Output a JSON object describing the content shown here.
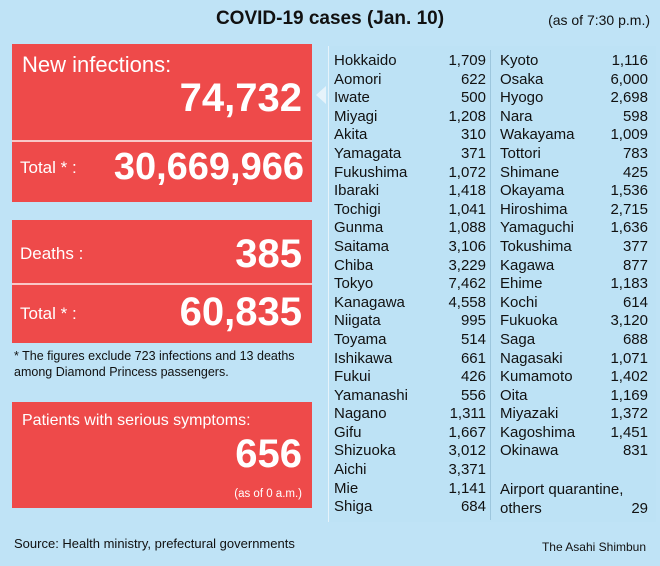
{
  "title": "COVID-19 cases (Jan. 10)",
  "as_of": "(as of 7:30 p.m.)",
  "new_infections": {
    "label": "New infections:",
    "value": "74,732",
    "total_label": "Total * :",
    "total": "30,669,966"
  },
  "deaths": {
    "label": "Deaths :",
    "value": "385",
    "total_label": "Total * :",
    "total": "60,835"
  },
  "footnote": "* The figures exclude 723 infections and 13 deaths among Diamond Princess passengers.",
  "serious": {
    "label": "Patients with serious symptoms:",
    "value": "656",
    "note": "(as of 0 a.m.)"
  },
  "colors": {
    "red_box": "#ee4a4a",
    "background": "#bfe3f6"
  },
  "prefectures_left": [
    {
      "name": "Hokkaido",
      "value": "1,709"
    },
    {
      "name": "Aomori",
      "value": "622"
    },
    {
      "name": "Iwate",
      "value": "500"
    },
    {
      "name": "Miyagi",
      "value": "1,208"
    },
    {
      "name": "Akita",
      "value": "310"
    },
    {
      "name": "Yamagata",
      "value": "371"
    },
    {
      "name": "Fukushima",
      "value": "1,072"
    },
    {
      "name": "Ibaraki",
      "value": "1,418"
    },
    {
      "name": "Tochigi",
      "value": "1,041"
    },
    {
      "name": "Gunma",
      "value": "1,088"
    },
    {
      "name": "Saitama",
      "value": "3,106"
    },
    {
      "name": "Chiba",
      "value": "3,229"
    },
    {
      "name": "Tokyo",
      "value": "7,462"
    },
    {
      "name": "Kanagawa",
      "value": "4,558"
    },
    {
      "name": "Niigata",
      "value": "995"
    },
    {
      "name": "Toyama",
      "value": "514"
    },
    {
      "name": "Ishikawa",
      "value": "661"
    },
    {
      "name": "Fukui",
      "value": "426"
    },
    {
      "name": "Yamanashi",
      "value": "556"
    },
    {
      "name": "Nagano",
      "value": "1,311"
    },
    {
      "name": "Gifu",
      "value": "1,667"
    },
    {
      "name": "Shizuoka",
      "value": "3,012"
    },
    {
      "name": "Aichi",
      "value": "3,371"
    },
    {
      "name": "Mie",
      "value": "1,141"
    },
    {
      "name": "Shiga",
      "value": "684"
    }
  ],
  "prefectures_right": [
    {
      "name": "Kyoto",
      "value": "1,116"
    },
    {
      "name": "Osaka",
      "value": "6,000"
    },
    {
      "name": "Hyogo",
      "value": "2,698"
    },
    {
      "name": "Nara",
      "value": "598"
    },
    {
      "name": "Wakayama",
      "value": "1,009"
    },
    {
      "name": "Tottori",
      "value": "783"
    },
    {
      "name": "Shimane",
      "value": "425"
    },
    {
      "name": "Okayama",
      "value": "1,536"
    },
    {
      "name": "Hiroshima",
      "value": "2,715"
    },
    {
      "name": "Yamaguchi",
      "value": "1,636"
    },
    {
      "name": "Tokushima",
      "value": "377"
    },
    {
      "name": "Kagawa",
      "value": "877"
    },
    {
      "name": "Ehime",
      "value": "1,183"
    },
    {
      "name": "Kochi",
      "value": "614"
    },
    {
      "name": "Fukuoka",
      "value": "3,120"
    },
    {
      "name": "Saga",
      "value": "688"
    },
    {
      "name": "Nagasaki",
      "value": "1,071"
    },
    {
      "name": "Kumamoto",
      "value": "1,402"
    },
    {
      "name": "Oita",
      "value": "1,169"
    },
    {
      "name": "Miyazaki",
      "value": "1,372"
    },
    {
      "name": "Kagoshima",
      "value": "1,451"
    },
    {
      "name": "Okinawa",
      "value": "831"
    }
  ],
  "airport": {
    "label1": "Airport quarantine,",
    "label2": "others",
    "value": "29"
  },
  "source": "Source: Health ministry, prefectural governments",
  "brand": "The Asahi Shimbun"
}
